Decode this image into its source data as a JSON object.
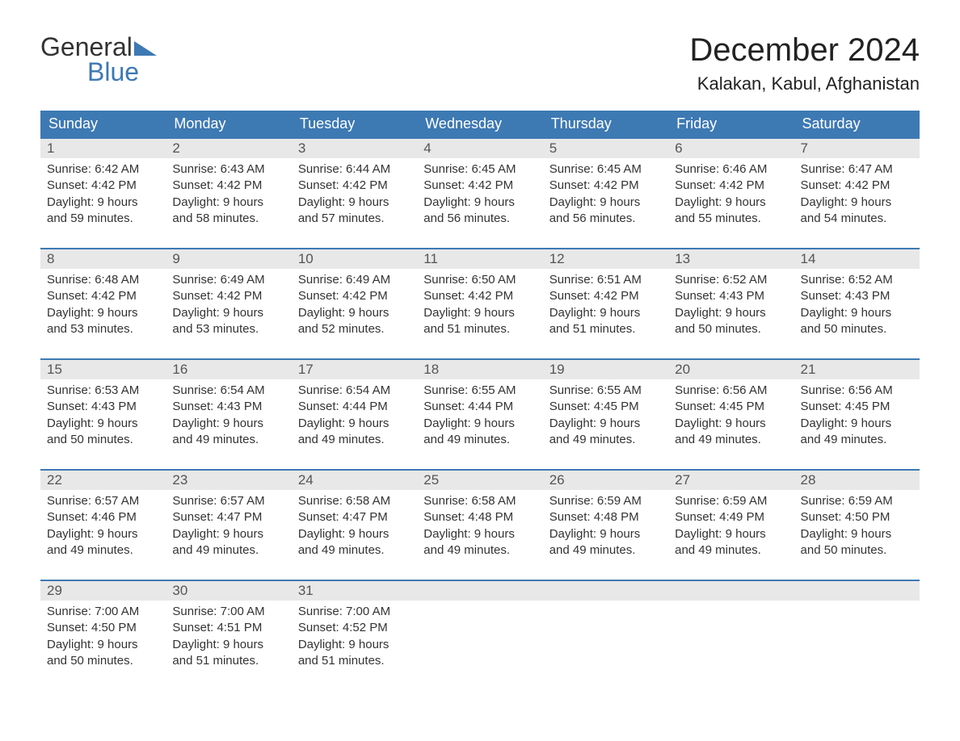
{
  "brand": {
    "word1": "General",
    "word2": "Blue",
    "color_primary": "#3d79b3",
    "color_text": "#333333"
  },
  "title": {
    "month_year": "December 2024",
    "location": "Kalakan, Kabul, Afghanistan",
    "title_fontsize": 40,
    "location_fontsize": 22
  },
  "calendar": {
    "type": "table",
    "columns": 7,
    "header_bg": "#3d79b3",
    "header_fg": "#ffffff",
    "row_separator_color": "#3d79b3",
    "daynum_bg": "#e8e8e8",
    "body_fontsize": 15,
    "day_headers": [
      "Sunday",
      "Monday",
      "Tuesday",
      "Wednesday",
      "Thursday",
      "Friday",
      "Saturday"
    ],
    "weeks": [
      [
        {
          "day": "1",
          "sunrise": "Sunrise: 6:42 AM",
          "sunset": "Sunset: 4:42 PM",
          "daylight1": "Daylight: 9 hours",
          "daylight2": "and 59 minutes."
        },
        {
          "day": "2",
          "sunrise": "Sunrise: 6:43 AM",
          "sunset": "Sunset: 4:42 PM",
          "daylight1": "Daylight: 9 hours",
          "daylight2": "and 58 minutes."
        },
        {
          "day": "3",
          "sunrise": "Sunrise: 6:44 AM",
          "sunset": "Sunset: 4:42 PM",
          "daylight1": "Daylight: 9 hours",
          "daylight2": "and 57 minutes."
        },
        {
          "day": "4",
          "sunrise": "Sunrise: 6:45 AM",
          "sunset": "Sunset: 4:42 PM",
          "daylight1": "Daylight: 9 hours",
          "daylight2": "and 56 minutes."
        },
        {
          "day": "5",
          "sunrise": "Sunrise: 6:45 AM",
          "sunset": "Sunset: 4:42 PM",
          "daylight1": "Daylight: 9 hours",
          "daylight2": "and 56 minutes."
        },
        {
          "day": "6",
          "sunrise": "Sunrise: 6:46 AM",
          "sunset": "Sunset: 4:42 PM",
          "daylight1": "Daylight: 9 hours",
          "daylight2": "and 55 minutes."
        },
        {
          "day": "7",
          "sunrise": "Sunrise: 6:47 AM",
          "sunset": "Sunset: 4:42 PM",
          "daylight1": "Daylight: 9 hours",
          "daylight2": "and 54 minutes."
        }
      ],
      [
        {
          "day": "8",
          "sunrise": "Sunrise: 6:48 AM",
          "sunset": "Sunset: 4:42 PM",
          "daylight1": "Daylight: 9 hours",
          "daylight2": "and 53 minutes."
        },
        {
          "day": "9",
          "sunrise": "Sunrise: 6:49 AM",
          "sunset": "Sunset: 4:42 PM",
          "daylight1": "Daylight: 9 hours",
          "daylight2": "and 53 minutes."
        },
        {
          "day": "10",
          "sunrise": "Sunrise: 6:49 AM",
          "sunset": "Sunset: 4:42 PM",
          "daylight1": "Daylight: 9 hours",
          "daylight2": "and 52 minutes."
        },
        {
          "day": "11",
          "sunrise": "Sunrise: 6:50 AM",
          "sunset": "Sunset: 4:42 PM",
          "daylight1": "Daylight: 9 hours",
          "daylight2": "and 51 minutes."
        },
        {
          "day": "12",
          "sunrise": "Sunrise: 6:51 AM",
          "sunset": "Sunset: 4:42 PM",
          "daylight1": "Daylight: 9 hours",
          "daylight2": "and 51 minutes."
        },
        {
          "day": "13",
          "sunrise": "Sunrise: 6:52 AM",
          "sunset": "Sunset: 4:43 PM",
          "daylight1": "Daylight: 9 hours",
          "daylight2": "and 50 minutes."
        },
        {
          "day": "14",
          "sunrise": "Sunrise: 6:52 AM",
          "sunset": "Sunset: 4:43 PM",
          "daylight1": "Daylight: 9 hours",
          "daylight2": "and 50 minutes."
        }
      ],
      [
        {
          "day": "15",
          "sunrise": "Sunrise: 6:53 AM",
          "sunset": "Sunset: 4:43 PM",
          "daylight1": "Daylight: 9 hours",
          "daylight2": "and 50 minutes."
        },
        {
          "day": "16",
          "sunrise": "Sunrise: 6:54 AM",
          "sunset": "Sunset: 4:43 PM",
          "daylight1": "Daylight: 9 hours",
          "daylight2": "and 49 minutes."
        },
        {
          "day": "17",
          "sunrise": "Sunrise: 6:54 AM",
          "sunset": "Sunset: 4:44 PM",
          "daylight1": "Daylight: 9 hours",
          "daylight2": "and 49 minutes."
        },
        {
          "day": "18",
          "sunrise": "Sunrise: 6:55 AM",
          "sunset": "Sunset: 4:44 PM",
          "daylight1": "Daylight: 9 hours",
          "daylight2": "and 49 minutes."
        },
        {
          "day": "19",
          "sunrise": "Sunrise: 6:55 AM",
          "sunset": "Sunset: 4:45 PM",
          "daylight1": "Daylight: 9 hours",
          "daylight2": "and 49 minutes."
        },
        {
          "day": "20",
          "sunrise": "Sunrise: 6:56 AM",
          "sunset": "Sunset: 4:45 PM",
          "daylight1": "Daylight: 9 hours",
          "daylight2": "and 49 minutes."
        },
        {
          "day": "21",
          "sunrise": "Sunrise: 6:56 AM",
          "sunset": "Sunset: 4:45 PM",
          "daylight1": "Daylight: 9 hours",
          "daylight2": "and 49 minutes."
        }
      ],
      [
        {
          "day": "22",
          "sunrise": "Sunrise: 6:57 AM",
          "sunset": "Sunset: 4:46 PM",
          "daylight1": "Daylight: 9 hours",
          "daylight2": "and 49 minutes."
        },
        {
          "day": "23",
          "sunrise": "Sunrise: 6:57 AM",
          "sunset": "Sunset: 4:47 PM",
          "daylight1": "Daylight: 9 hours",
          "daylight2": "and 49 minutes."
        },
        {
          "day": "24",
          "sunrise": "Sunrise: 6:58 AM",
          "sunset": "Sunset: 4:47 PM",
          "daylight1": "Daylight: 9 hours",
          "daylight2": "and 49 minutes."
        },
        {
          "day": "25",
          "sunrise": "Sunrise: 6:58 AM",
          "sunset": "Sunset: 4:48 PM",
          "daylight1": "Daylight: 9 hours",
          "daylight2": "and 49 minutes."
        },
        {
          "day": "26",
          "sunrise": "Sunrise: 6:59 AM",
          "sunset": "Sunset: 4:48 PM",
          "daylight1": "Daylight: 9 hours",
          "daylight2": "and 49 minutes."
        },
        {
          "day": "27",
          "sunrise": "Sunrise: 6:59 AM",
          "sunset": "Sunset: 4:49 PM",
          "daylight1": "Daylight: 9 hours",
          "daylight2": "and 49 minutes."
        },
        {
          "day": "28",
          "sunrise": "Sunrise: 6:59 AM",
          "sunset": "Sunset: 4:50 PM",
          "daylight1": "Daylight: 9 hours",
          "daylight2": "and 50 minutes."
        }
      ],
      [
        {
          "day": "29",
          "sunrise": "Sunrise: 7:00 AM",
          "sunset": "Sunset: 4:50 PM",
          "daylight1": "Daylight: 9 hours",
          "daylight2": "and 50 minutes."
        },
        {
          "day": "30",
          "sunrise": "Sunrise: 7:00 AM",
          "sunset": "Sunset: 4:51 PM",
          "daylight1": "Daylight: 9 hours",
          "daylight2": "and 51 minutes."
        },
        {
          "day": "31",
          "sunrise": "Sunrise: 7:00 AM",
          "sunset": "Sunset: 4:52 PM",
          "daylight1": "Daylight: 9 hours",
          "daylight2": "and 51 minutes."
        },
        {
          "empty": true
        },
        {
          "empty": true
        },
        {
          "empty": true
        },
        {
          "empty": true
        }
      ]
    ]
  }
}
